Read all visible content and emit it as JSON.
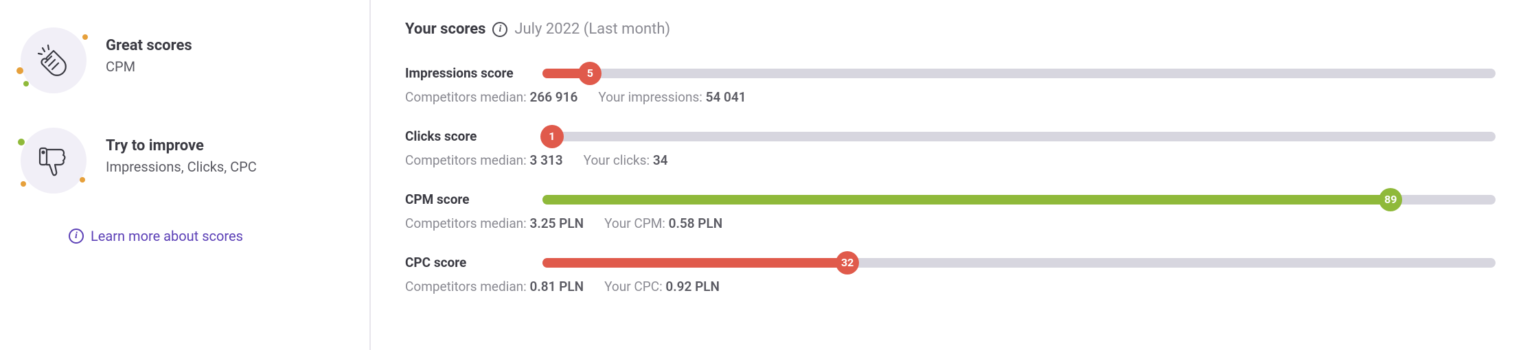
{
  "sidebar": {
    "great": {
      "title": "Great scores",
      "value": "CPM"
    },
    "improve": {
      "title": "Try to improve",
      "value": "Impressions, Clicks, CPC"
    },
    "learn_more": "Learn more about scores"
  },
  "header": {
    "title": "Your scores",
    "period": "July 2022 (Last month)"
  },
  "colors": {
    "bad": "#e05a4b",
    "good": "#8fb93a",
    "track": "#d7d6df"
  },
  "scores": {
    "impressions": {
      "label": "Impressions score",
      "value": 5,
      "color": "#e05a4b",
      "median_label": "Competitors median:",
      "median_value": "266 916",
      "your_label": "Your impressions:",
      "your_value": "54 041"
    },
    "clicks": {
      "label": "Clicks score",
      "value": 1,
      "color": "#e05a4b",
      "median_label": "Competitors median:",
      "median_value": "3 313",
      "your_label": "Your clicks:",
      "your_value": "34"
    },
    "cpm": {
      "label": "CPM score",
      "value": 89,
      "color": "#8fb93a",
      "median_label": "Competitors median:",
      "median_value": "3.25 PLN",
      "your_label": "Your CPM:",
      "your_value": "0.58 PLN"
    },
    "cpc": {
      "label": "CPC score",
      "value": 32,
      "color": "#e05a4b",
      "median_label": "Competitors median:",
      "median_value": "0.81 PLN",
      "your_label": "Your CPC:",
      "your_value": "0.92 PLN"
    }
  }
}
